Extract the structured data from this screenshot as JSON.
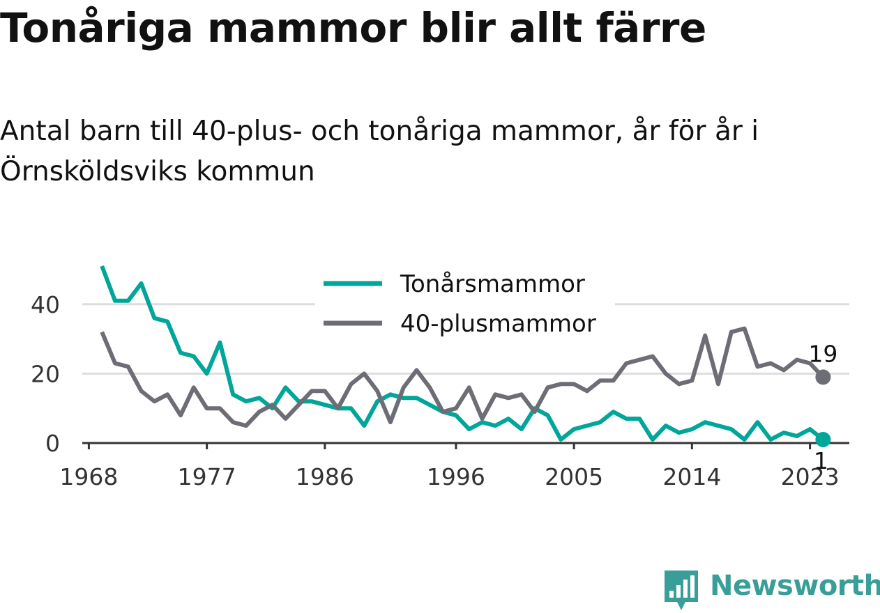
{
  "title": "Tonåriga mammor blir allt färre",
  "subtitle": "Antal barn till 40-plus- och tonåriga mammor, år för år i Örnsköldsviks kommun",
  "brand": {
    "name": "Newsworthy",
    "color": "#3a9e98"
  },
  "chart_data": {
    "type": "line",
    "x": [
      1969,
      1970,
      1971,
      1972,
      1973,
      1974,
      1975,
      1976,
      1977,
      1978,
      1979,
      1980,
      1981,
      1982,
      1983,
      1984,
      1985,
      1986,
      1987,
      1988,
      1989,
      1990,
      1991,
      1992,
      1993,
      1994,
      1995,
      1996,
      1997,
      1998,
      1999,
      2000,
      2001,
      2002,
      2003,
      2004,
      2005,
      2006,
      2007,
      2008,
      2009,
      2010,
      2011,
      2012,
      2013,
      2014,
      2015,
      2016,
      2017,
      2018,
      2019,
      2020,
      2021,
      2022,
      2023,
      2024
    ],
    "series": [
      {
        "name": "Tonårsmammor",
        "color": "#00a699",
        "values": [
          51,
          41,
          41,
          46,
          36,
          35,
          26,
          25,
          20,
          29,
          14,
          12,
          13,
          10,
          16,
          12,
          12,
          11,
          10,
          10,
          5,
          12,
          14,
          13,
          13,
          11,
          9,
          8,
          4,
          6,
          5,
          7,
          4,
          10,
          8,
          1,
          4,
          5,
          6,
          9,
          7,
          7,
          1,
          5,
          3,
          4,
          6,
          5,
          4,
          1,
          6,
          1,
          3,
          2,
          4,
          1
        ]
      },
      {
        "name": "40-plusmammor",
        "color": "#6d6d75",
        "values": [
          32,
          23,
          22,
          15,
          12,
          14,
          8,
          16,
          10,
          10,
          6,
          5,
          9,
          11,
          7,
          11,
          15,
          15,
          10,
          17,
          20,
          15,
          6,
          16,
          21,
          16,
          9,
          10,
          16,
          7,
          14,
          13,
          14,
          9,
          16,
          17,
          17,
          15,
          18,
          18,
          23,
          24,
          25,
          20,
          17,
          18,
          31,
          17,
          32,
          33,
          22,
          23,
          21,
          24,
          23,
          19
        ]
      }
    ],
    "end_labels": [
      "19",
      "1"
    ],
    "x_ticks": [
      "1968",
      "1977",
      "1986",
      "1996",
      "2005",
      "2014",
      "2023"
    ],
    "y_ticks": [
      "0",
      "20",
      "40"
    ],
    "xlim": [
      1967.5,
      2026
    ],
    "ylim": [
      0,
      51
    ],
    "grid": "horizontal",
    "legend_position": "top-center"
  }
}
